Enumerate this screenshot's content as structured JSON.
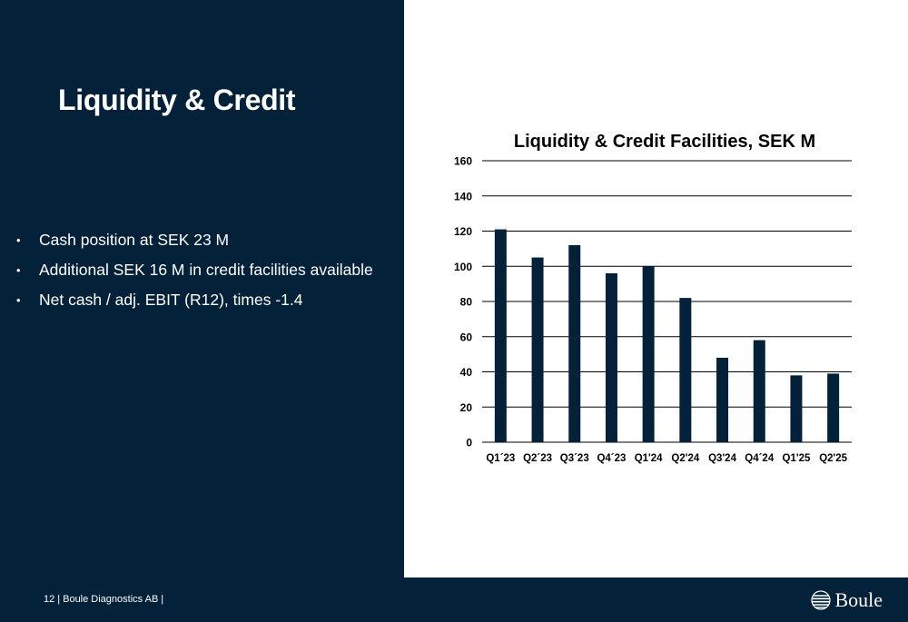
{
  "slide": {
    "title": "Liquidity & Credit",
    "bullets": [
      "Cash position at SEK 23 M",
      "Additional SEK 16 M in credit facilities available",
      "Net cash / adj. EBIT (R12), times -1.4"
    ],
    "bullet_symbol": "•"
  },
  "footer": {
    "page_number": "12",
    "company": "Boule Diagnostics AB",
    "separator": "|",
    "brand_name": "Boule",
    "brand_icon": "globe-logo-icon"
  },
  "colors": {
    "background": "#04213a",
    "bar": "#04213a",
    "panel": "#ffffff"
  },
  "chart_data": {
    "type": "bar",
    "title": "Liquidity & Credit Facilities, SEK M",
    "xlabel": "",
    "ylabel": "",
    "categories": [
      "Q1´23",
      "Q2´23",
      "Q3´23",
      "Q4´23",
      "Q1'24",
      "Q2'24",
      "Q3'24",
      "Q4´24",
      "Q1'25",
      "Q2'25"
    ],
    "values": [
      121,
      105,
      112,
      96,
      100,
      82,
      48,
      58,
      38,
      39
    ],
    "ylim": [
      0,
      160
    ],
    "yticks": [
      0,
      20,
      40,
      60,
      80,
      100,
      120,
      140,
      160
    ],
    "grid": true,
    "legend": "none"
  }
}
